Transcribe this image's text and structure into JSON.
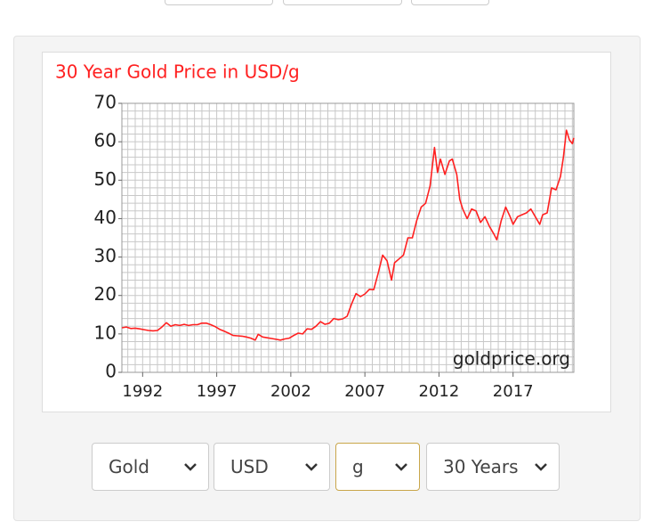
{
  "chart_data": {
    "type": "line",
    "title": "30 Year Gold Price in USD/g",
    "watermark": "goldprice.org",
    "x": [
      1990.6,
      1990.9,
      1991.2,
      1991.5,
      1991.8,
      1992.1,
      1992.4,
      1992.7,
      1993.0,
      1993.3,
      1993.6,
      1993.9,
      1994.2,
      1994.5,
      1994.8,
      1995.1,
      1995.4,
      1995.7,
      1996.0,
      1996.3,
      1996.6,
      1996.9,
      1997.2,
      1997.5,
      1997.8,
      1998.1,
      1998.4,
      1998.7,
      1999.0,
      1999.3,
      1999.6,
      1999.8,
      2000.1,
      2000.4,
      2000.7,
      2001.0,
      2001.3,
      2001.6,
      2001.9,
      2002.2,
      2002.5,
      2002.8,
      2003.1,
      2003.4,
      2003.7,
      2004.0,
      2004.3,
      2004.6,
      2004.9,
      2005.2,
      2005.5,
      2005.8,
      2006.1,
      2006.4,
      2006.7,
      2007.0,
      2007.3,
      2007.6,
      2007.9,
      2008.2,
      2008.5,
      2008.8,
      2009.0,
      2009.3,
      2009.6,
      2009.9,
      2010.2,
      2010.5,
      2010.8,
      2011.1,
      2011.4,
      2011.7,
      2011.9,
      2012.1,
      2012.4,
      2012.7,
      2012.9,
      2013.2,
      2013.4,
      2013.6,
      2013.9,
      2014.2,
      2014.5,
      2014.8,
      2015.1,
      2015.4,
      2015.7,
      2015.9,
      2016.2,
      2016.5,
      2016.8,
      2017.0,
      2017.3,
      2017.6,
      2017.9,
      2018.2,
      2018.5,
      2018.8,
      2019.0,
      2019.3,
      2019.6,
      2019.9,
      2020.2,
      2020.4,
      2020.6,
      2020.8,
      2021.0,
      2021.1
    ],
    "values": [
      11.6,
      11.8,
      11.4,
      11.5,
      11.3,
      11.1,
      10.9,
      10.8,
      10.9,
      11.8,
      12.9,
      12.0,
      12.4,
      12.2,
      12.5,
      12.2,
      12.4,
      12.4,
      12.8,
      12.8,
      12.4,
      11.9,
      11.2,
      10.7,
      10.2,
      9.6,
      9.5,
      9.4,
      9.2,
      8.9,
      8.4,
      9.9,
      9.2,
      9.0,
      8.8,
      8.6,
      8.4,
      8.7,
      8.9,
      9.6,
      10.2,
      10.0,
      11.3,
      11.2,
      12.0,
      13.2,
      12.5,
      12.8,
      14.0,
      13.7,
      13.9,
      14.6,
      17.8,
      20.5,
      19.7,
      20.4,
      21.6,
      21.5,
      25.8,
      30.5,
      29.0,
      24.0,
      28.5,
      29.5,
      30.5,
      35.0,
      35.0,
      39.5,
      43.0,
      44.0,
      48.5,
      58.5,
      52.0,
      55.5,
      51.5,
      55.0,
      55.5,
      51.5,
      45.0,
      42.5,
      40.0,
      42.5,
      42.0,
      39.0,
      40.5,
      38.0,
      36.0,
      34.5,
      39.5,
      43.0,
      40.5,
      38.5,
      40.5,
      41.0,
      41.5,
      42.5,
      40.5,
      38.5,
      41.0,
      41.5,
      48.0,
      47.5,
      51.0,
      56.0,
      63.0,
      60.5,
      59.5,
      61.0
    ],
    "color": "#ff2020",
    "xlim": [
      1990.6,
      2021.1
    ],
    "xticks": [
      1992,
      1997,
      2002,
      2007,
      2012,
      2017
    ],
    "ylim": [
      0,
      70
    ],
    "yticks": [
      0,
      10,
      20,
      30,
      40,
      50,
      60,
      70
    ],
    "grid": true,
    "x_grid_step": 0.5,
    "y_grid_step": 2
  },
  "controls": [
    {
      "label": "Gold"
    },
    {
      "label": "USD"
    },
    {
      "label": "g"
    },
    {
      "label": "30 Years"
    }
  ]
}
